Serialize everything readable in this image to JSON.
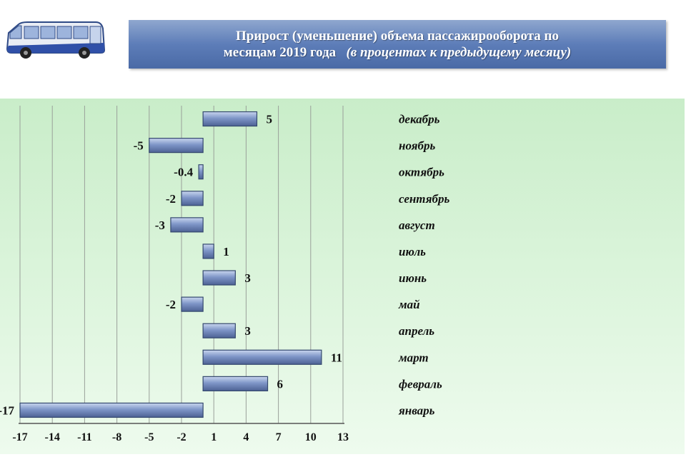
{
  "title": {
    "line1": "Прирост (уменьшение) объема пассажирооборота по",
    "line2": "месяцам 2019 года",
    "note": "(в процентах к предыдущему месяцу)"
  },
  "icons": {
    "bus": "bus-icon"
  },
  "colors": {
    "title_bg": "#5d7db8",
    "bar_fill": "#7f96c8",
    "bar_edge": "#34486e",
    "panel_bg": "#d4f0d4",
    "grid": "#9aa09a"
  },
  "chart_data": {
    "type": "bar",
    "orientation": "horizontal",
    "categories": [
      "декабрь",
      "ноябрь",
      "октябрь",
      "сентябрь",
      "август",
      "июль",
      "июнь",
      "май",
      "апрель",
      "март",
      "февраль",
      "январь"
    ],
    "values": [
      5,
      -5,
      -0.4,
      -2,
      -3,
      1,
      3,
      -2,
      3,
      11,
      6,
      -17
    ],
    "value_labels": [
      "5",
      "-5",
      "-0.4",
      "-2",
      "-3",
      "1",
      "3",
      "-2",
      "3",
      "11",
      "6",
      "-17"
    ],
    "x_ticks": [
      -17,
      -14,
      -11,
      -8,
      -5,
      -2,
      1,
      4,
      7,
      10,
      13
    ],
    "xlim": [
      -17,
      13
    ],
    "grid": true,
    "legend": "none"
  }
}
